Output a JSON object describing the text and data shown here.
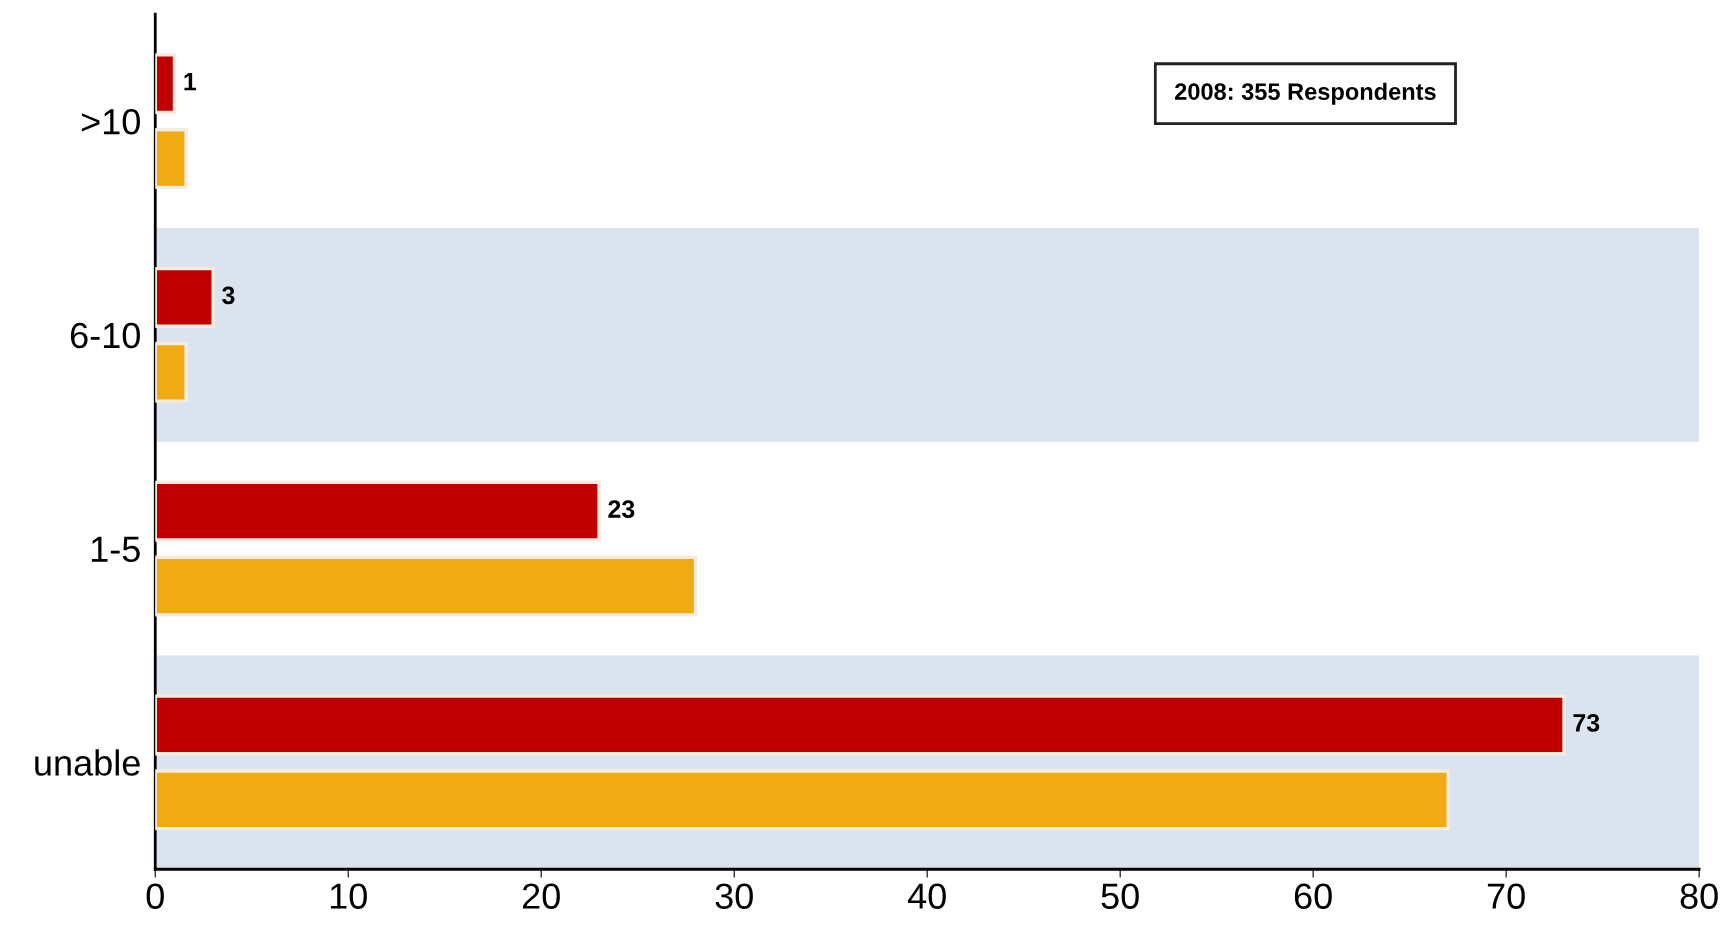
{
  "chart_data": {
    "type": "bar",
    "orientation": "horizontal",
    "categories": [
      ">10",
      "6-10",
      "1-5",
      "unable"
    ],
    "series": [
      {
        "color": "#c00000",
        "values": [
          1,
          3,
          23,
          73
        ],
        "value_labels": [
          "1",
          "3",
          "23",
          "73"
        ]
      },
      {
        "color": "#f0aa14",
        "values": [
          1.6,
          1.6,
          28,
          67
        ]
      }
    ],
    "xlim": [
      0,
      80
    ],
    "xticks": [
      0,
      10,
      20,
      30,
      40,
      50,
      60,
      70,
      80
    ],
    "grid": false,
    "bands": [
      {
        "axis": "y",
        "from": "6-10",
        "to": "6-10",
        "color": "#dae3ee"
      },
      {
        "axis": "y",
        "from": "unable",
        "to": "unable",
        "color": "#dae3ee"
      }
    ],
    "annotations": [
      "2008: 355 Respondents"
    ]
  }
}
